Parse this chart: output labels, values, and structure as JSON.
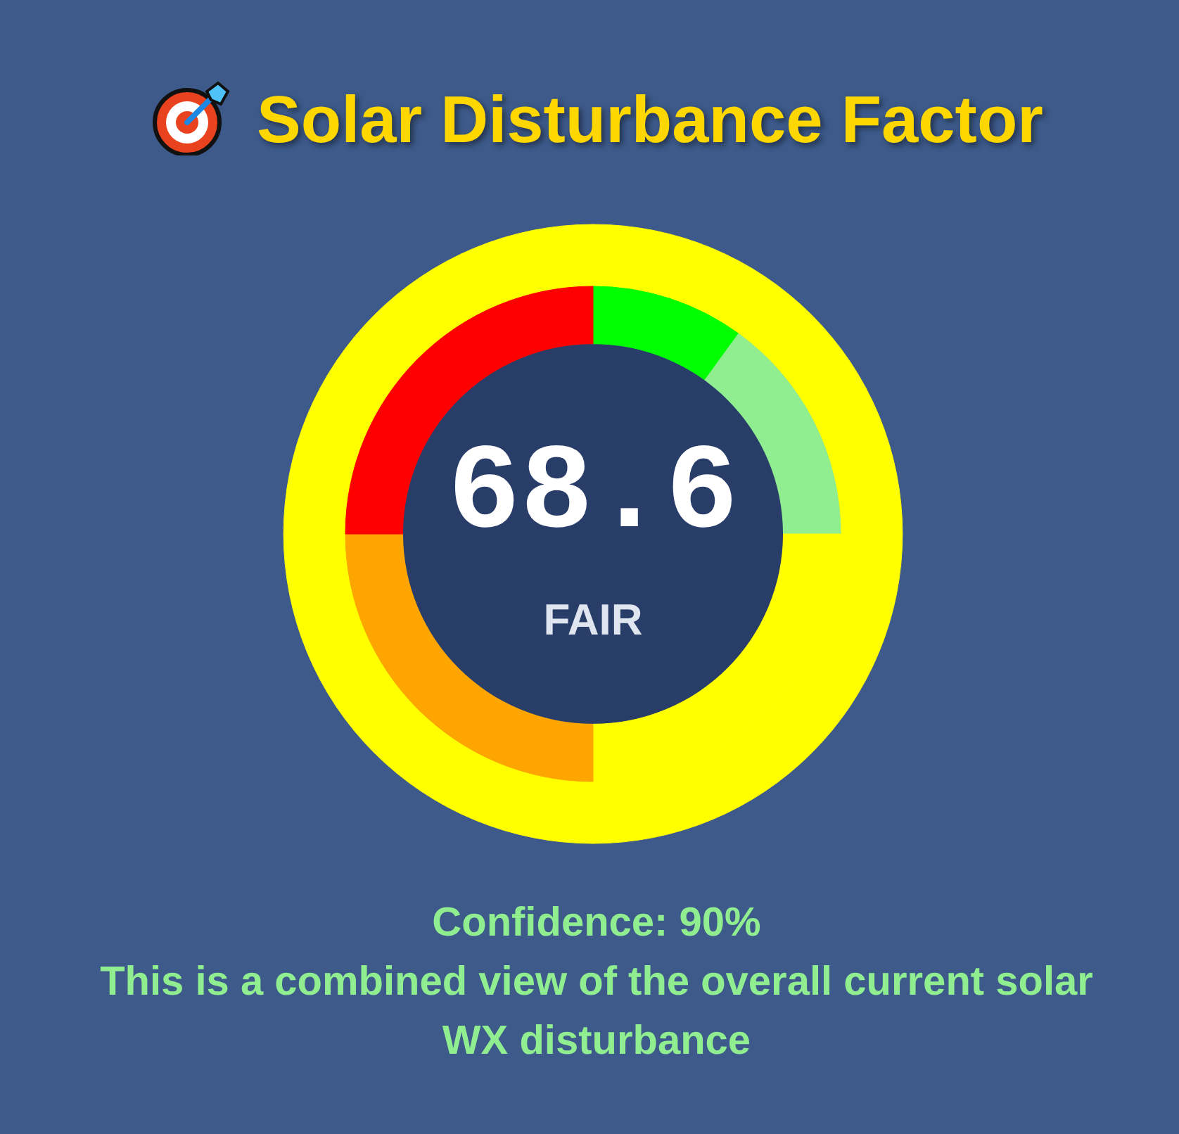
{
  "chart_data": {
    "type": "donut",
    "title": "Solar Disturbance Factor",
    "series": [
      {
        "values": [
          100
        ],
        "colors": [
          "#ffff00"
        ]
      },
      {
        "values": [
          10,
          15,
          25,
          25,
          25
        ],
        "colors": [
          "#00ff00",
          "#90ee90",
          "#ffff00",
          "#ffa500",
          "#ff0000"
        ]
      }
    ],
    "annotations": [
      "68.6",
      "FAIR",
      "Confidence: 90%",
      "This is a combined view of the overall current solar WX disturbance"
    ]
  }
}
